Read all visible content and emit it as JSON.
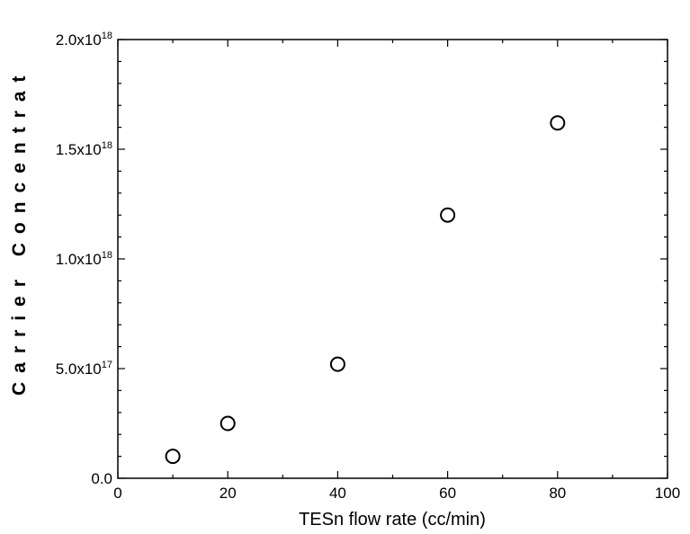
{
  "chart_data": {
    "type": "scatter",
    "title": "",
    "xlabel": "TESn flow rate (cc/min)",
    "ylabel": "Carrier Concentrat",
    "xlim": [
      0,
      100
    ],
    "ylim": [
      0,
      2e+18
    ],
    "xticks": [
      0,
      20,
      40,
      60,
      80,
      100
    ],
    "xtick_labels": [
      "0",
      "20",
      "40",
      "60",
      "80",
      "100"
    ],
    "yticks": [
      0,
      5e+17,
      1e+18,
      1.5e+18,
      2e+18
    ],
    "ytick_labels": [
      {
        "mantissa": "0.0",
        "exp": ""
      },
      {
        "mantissa": "5.0x10",
        "exp": "17"
      },
      {
        "mantissa": "1.0x10",
        "exp": "18"
      },
      {
        "mantissa": "1.5x10",
        "exp": "18"
      },
      {
        "mantissa": "2.0x10",
        "exp": "18"
      }
    ],
    "grid": false,
    "marker": "open-circle",
    "series": [
      {
        "x": [
          10,
          20,
          40,
          60,
          80
        ],
        "y": [
          1e+17,
          2.5e+17,
          5.2e+17,
          1.2e+18,
          1.62e+18
        ]
      }
    ]
  }
}
